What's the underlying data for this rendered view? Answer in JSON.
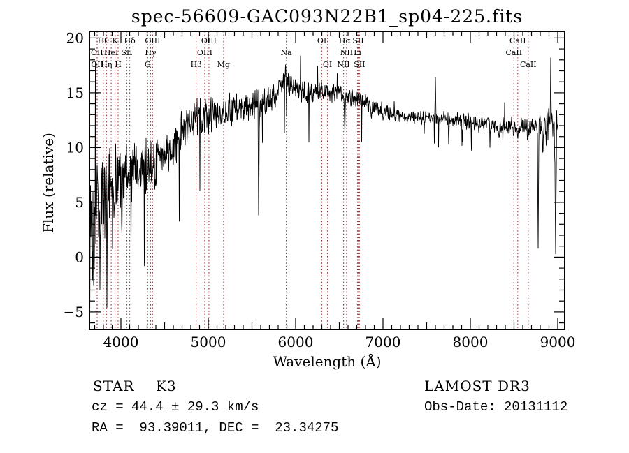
{
  "title": "spec-56609-GAC093N22B1_sp04-225.fits",
  "plot": {
    "xlabel": "Wavelength (Å)",
    "ylabel": "Flux (relative)"
  },
  "footer": {
    "classification": "STAR",
    "subclass": "K3",
    "cz": "cz = 44.4 ± 29.3 km/s",
    "ra_dec": "RA =  93.39011, DEC =  23.34275",
    "survey": "LAMOST DR3",
    "obs_date": "Obs-Date: 20131112"
  },
  "colors": {
    "spectrum": "#000000",
    "marker_line": "#993636",
    "axis": "#000000",
    "background": "#ffffff",
    "text": "#000000"
  },
  "chart_data": {
    "type": "line",
    "title": "spec-56609-GAC093N22B1_sp04-225.fits",
    "xlabel": "Wavelength (Å)",
    "ylabel": "Flux (relative)",
    "xlim": [
      3640,
      9080
    ],
    "ylim": [
      -6.6,
      20.6
    ],
    "x_ticks": [
      4000,
      5000,
      6000,
      7000,
      8000,
      9000
    ],
    "x_tick_labels": [
      "4000",
      "5000",
      "6000",
      "7000",
      "8000",
      "9000"
    ],
    "x_minor_step": 100,
    "y_ticks": [
      20,
      15,
      10,
      5,
      0,
      -5
    ],
    "y_tick_labels": [
      "20",
      "15",
      "10",
      "5",
      "0",
      "−5"
    ],
    "y_minor_step": 1,
    "grid": false,
    "spectrum_range": [
      3640,
      9000
    ],
    "spectral_lines": [
      {
        "label": "Hθ",
        "wavelength": 3798,
        "row": 1
      },
      {
        "label": "K",
        "wavelength": 3933,
        "row": 1
      },
      {
        "label": "Hδ",
        "wavelength": 4101,
        "row": 1
      },
      {
        "label": "OIII",
        "wavelength": 4363,
        "row": 1
      },
      {
        "label": "OIII",
        "wavelength": 5007,
        "row": 1
      },
      {
        "label": "OI",
        "wavelength": 6300,
        "row": 1
      },
      {
        "label": "Hα",
        "wavelength": 6563,
        "row": 1
      },
      {
        "label": "SII",
        "wavelength": 6716,
        "row": 1
      },
      {
        "label": "CaII",
        "wavelength": 8542,
        "row": 1
      },
      {
        "label": "OII",
        "wavelength": 3727,
        "row": 2
      },
      {
        "label": "HeI",
        "wavelength": 3889,
        "row": 2
      },
      {
        "label": "SII",
        "wavelength": 4068,
        "row": 2
      },
      {
        "label": "Hγ",
        "wavelength": 4340,
        "row": 2
      },
      {
        "label": "OIII",
        "wavelength": 4959,
        "row": 2
      },
      {
        "label": "Na",
        "wavelength": 5893,
        "row": 2
      },
      {
        "label": "NII",
        "wavelength": 6583,
        "row": 2
      },
      {
        "label": "Li",
        "wavelength": 6708,
        "row": 2
      },
      {
        "label": "CaII",
        "wavelength": 8498,
        "row": 2
      },
      {
        "label": "OII",
        "wavelength": 3729,
        "row": 3
      },
      {
        "label": "Hη",
        "wavelength": 3835,
        "row": 3
      },
      {
        "label": "H",
        "wavelength": 3968,
        "row": 3
      },
      {
        "label": "G",
        "wavelength": 4306,
        "row": 3
      },
      {
        "label": "Hβ",
        "wavelength": 4861,
        "row": 3
      },
      {
        "label": "Mg",
        "wavelength": 5175,
        "row": 3
      },
      {
        "label": "OI",
        "wavelength": 6364,
        "row": 3
      },
      {
        "label": "NII",
        "wavelength": 6548,
        "row": 3
      },
      {
        "label": "SII",
        "wavelength": 6731,
        "row": 3
      },
      {
        "label": "CaII",
        "wavelength": 8662,
        "row": 3
      }
    ],
    "continuum_points": [
      [
        3640,
        3.5
      ],
      [
        3700,
        4.3
      ],
      [
        3760,
        5.0
      ],
      [
        3820,
        5.6
      ],
      [
        3880,
        6.2
      ],
      [
        3940,
        6.9
      ],
      [
        4000,
        7.5
      ],
      [
        4100,
        7.9
      ],
      [
        4200,
        8.1
      ],
      [
        4300,
        8.3
      ],
      [
        4400,
        8.6
      ],
      [
        4500,
        9.2
      ],
      [
        4600,
        10.0
      ],
      [
        4700,
        11.5
      ],
      [
        4800,
        12.3
      ],
      [
        4900,
        12.8
      ],
      [
        5000,
        13.0
      ],
      [
        5100,
        13.1
      ],
      [
        5200,
        13.3
      ],
      [
        5300,
        13.4
      ],
      [
        5400,
        13.6
      ],
      [
        5500,
        13.8
      ],
      [
        5600,
        14.1
      ],
      [
        5700,
        14.6
      ],
      [
        5800,
        15.1
      ],
      [
        5860,
        16.0
      ],
      [
        5900,
        16.2
      ],
      [
        5950,
        15.6
      ],
      [
        6050,
        15.1
      ],
      [
        6150,
        15.0
      ],
      [
        6250,
        15.0
      ],
      [
        6350,
        15.2
      ],
      [
        6450,
        15.0
      ],
      [
        6550,
        14.8
      ],
      [
        6650,
        14.5
      ],
      [
        6750,
        14.3
      ],
      [
        6850,
        14.0
      ],
      [
        6950,
        13.6
      ],
      [
        7050,
        13.2
      ],
      [
        7150,
        13.0
      ],
      [
        7250,
        12.9
      ],
      [
        7350,
        12.8
      ],
      [
        7450,
        12.8
      ],
      [
        7550,
        12.7
      ],
      [
        7650,
        12.7
      ],
      [
        7750,
        12.6
      ],
      [
        7850,
        12.5
      ],
      [
        7950,
        12.4
      ],
      [
        8050,
        12.3
      ],
      [
        8150,
        12.2
      ],
      [
        8250,
        12.1
      ],
      [
        8350,
        12.0
      ],
      [
        8450,
        11.9
      ],
      [
        8550,
        11.8
      ],
      [
        8650,
        11.7
      ],
      [
        8750,
        11.9
      ],
      [
        8850,
        12.1
      ],
      [
        8920,
        12.3
      ],
      [
        8960,
        12.3
      ],
      [
        9000,
        12.0
      ]
    ],
    "noise_amplitude_points": [
      [
        3640,
        4.4
      ],
      [
        3720,
        4.0
      ],
      [
        3800,
        3.2
      ],
      [
        3900,
        2.7
      ],
      [
        4000,
        2.2
      ],
      [
        4200,
        2.0
      ],
      [
        4400,
        1.7
      ],
      [
        4600,
        1.4
      ],
      [
        4800,
        1.2
      ],
      [
        5000,
        1.2
      ],
      [
        5400,
        1.0
      ],
      [
        5800,
        0.9
      ],
      [
        6300,
        0.75
      ],
      [
        6800,
        0.55
      ],
      [
        7300,
        0.45
      ],
      [
        7800,
        0.5
      ],
      [
        8200,
        0.6
      ],
      [
        8600,
        0.7
      ],
      [
        8800,
        1.0
      ],
      [
        9000,
        1.1
      ]
    ],
    "sharp_features": [
      [
        3688,
        -2.6,
        7
      ],
      [
        3760,
        -3.0,
        5
      ],
      [
        3840,
        -4.6,
        6
      ],
      [
        3905,
        -1.4,
        5
      ],
      [
        4010,
        -0.8,
        5
      ],
      [
        5577,
        2.6,
        9
      ],
      [
        5885,
        17.9,
        7
      ],
      [
        5896,
        12.9,
        5
      ],
      [
        6563,
        11.0,
        8
      ],
      [
        6867,
        12.6,
        12
      ],
      [
        7000,
        12.5,
        10
      ],
      [
        7140,
        12.4,
        10
      ],
      [
        7600,
        16.4,
        7
      ],
      [
        7752,
        10.3,
        8
      ],
      [
        7912,
        10.5,
        8
      ],
      [
        8230,
        11.2,
        8
      ],
      [
        8330,
        10.8,
        8
      ],
      [
        8498,
        10.8,
        7
      ],
      [
        8542,
        10.6,
        7
      ],
      [
        8662,
        10.8,
        7
      ],
      [
        8776,
        0.8,
        9
      ],
      [
        8830,
        8.6,
        7
      ],
      [
        8868,
        10.2,
        6
      ],
      [
        8920,
        18.2,
        8
      ],
      [
        8976,
        0.3,
        12
      ]
    ],
    "noise_seed": 13
  }
}
